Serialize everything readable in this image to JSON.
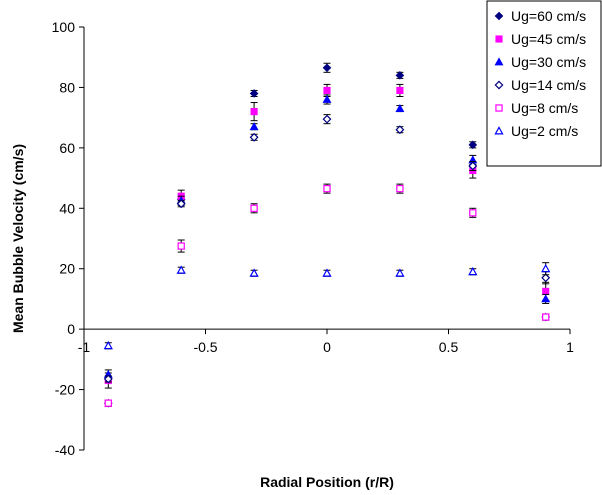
{
  "chart_data": {
    "type": "scatter",
    "title": "",
    "xlabel": "Radial Position (r/R)",
    "ylabel": "Mean Bubble Velocity (cm/s)",
    "xlim": [
      -1,
      1
    ],
    "ylim": [
      -40,
      100
    ],
    "x_ticks": [
      "-1",
      "-0.5",
      "0",
      "0.5",
      "1"
    ],
    "x_tick_values": [
      -1,
      -0.5,
      0,
      0.5,
      1
    ],
    "y_ticks": [
      "-40",
      "-20",
      "0",
      "20",
      "40",
      "60",
      "80",
      "100"
    ],
    "y_tick_values": [
      -40,
      -20,
      0,
      20,
      40,
      60,
      80,
      100
    ],
    "grid": false,
    "legend_position": "top-right",
    "error_bars": true,
    "series": [
      {
        "name": "Ug=60 cm/s",
        "marker": "filled-diamond",
        "color": "#000080",
        "x": [
          -0.9,
          -0.6,
          -0.3,
          0,
          0.3,
          0.6,
          0.9
        ],
        "y": [
          -24.5,
          43,
          78,
          86.5,
          84,
          61,
          4
        ],
        "err": [
          1,
          1,
          1,
          1.5,
          1,
          1,
          1
        ]
      },
      {
        "name": "Ug=45 cm/s",
        "marker": "filled-square",
        "color": "#ff00ff",
        "x": [
          -0.9,
          -0.6,
          -0.3,
          0,
          0.3,
          0.6,
          0.9
        ],
        "y": [
          -17,
          44,
          72,
          79,
          79,
          52.5,
          12.5
        ],
        "err": [
          2.5,
          2,
          3,
          2,
          2,
          2.5,
          3
        ]
      },
      {
        "name": "Ug=30 cm/s",
        "marker": "filled-triangle",
        "color": "#0000ff",
        "x": [
          -0.9,
          -0.6,
          -0.3,
          0,
          0.3,
          0.6,
          0.9
        ],
        "y": [
          -15,
          42.5,
          67,
          76,
          73,
          56,
          10
        ],
        "err": [
          1.5,
          1.5,
          1,
          1.5,
          1,
          1.5,
          1.5
        ]
      },
      {
        "name": "Ug=14 cm/s",
        "marker": "open-diamond",
        "color": "#000080",
        "x": [
          -0.9,
          -0.6,
          -0.3,
          0,
          0.3,
          0.6,
          0.9
        ],
        "y": [
          -16.5,
          41.5,
          63.5,
          69.5,
          66,
          54,
          17
        ],
        "err": [
          1,
          1,
          1,
          1.5,
          1,
          1.5,
          2
        ]
      },
      {
        "name": "Ug=8 cm/s",
        "marker": "open-square",
        "color": "#ff00ff",
        "x": [
          -0.9,
          -0.6,
          -0.3,
          0,
          0.3,
          0.6,
          0.9
        ],
        "y": [
          -24.5,
          27.5,
          40,
          46.5,
          46.5,
          38.5,
          4
        ],
        "err": [
          1,
          2,
          1.5,
          1.5,
          1.5,
          1.5,
          1
        ]
      },
      {
        "name": "Ug=2 cm/s",
        "marker": "open-triangle",
        "color": "#0000ff",
        "x": [
          -0.9,
          -0.6,
          -0.3,
          0,
          0.3,
          0.6,
          0.9
        ],
        "y": [
          -5.5,
          19.5,
          18.5,
          18.5,
          18.5,
          19,
          20
        ],
        "err": [
          1,
          1,
          1,
          1,
          1,
          1,
          2
        ]
      }
    ]
  }
}
